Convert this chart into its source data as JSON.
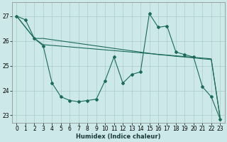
{
  "xlabel": "Humidex (Indice chaleur)",
  "bg_color": "#cce8e8",
  "grid_color": "#aacccc",
  "line_color": "#1a6b5a",
  "xlim": [
    -0.5,
    23.5
  ],
  "ylim": [
    22.7,
    27.55
  ],
  "yticks": [
    23,
    24,
    25,
    26,
    27
  ],
  "xticks": [
    0,
    1,
    2,
    3,
    4,
    5,
    6,
    7,
    8,
    9,
    10,
    11,
    12,
    13,
    14,
    15,
    16,
    17,
    18,
    19,
    20,
    21,
    22,
    23
  ],
  "line1_x": [
    0,
    1,
    2,
    3,
    4,
    5,
    6,
    7,
    8,
    9,
    10,
    11,
    12,
    13,
    14,
    15,
    16,
    17,
    18,
    19,
    20,
    21,
    22,
    23
  ],
  "line1_y": [
    27.0,
    26.85,
    26.1,
    25.8,
    24.3,
    23.75,
    23.6,
    23.55,
    23.6,
    23.65,
    24.4,
    25.35,
    24.3,
    24.65,
    24.75,
    27.1,
    26.55,
    26.6,
    25.55,
    25.45,
    25.35,
    24.15,
    23.75,
    22.85
  ],
  "line2_x": [
    0,
    2,
    3,
    4,
    5,
    6,
    7,
    8,
    9,
    10,
    11,
    12,
    13,
    14,
    15,
    16,
    17,
    18,
    19,
    20,
    21,
    22,
    23
  ],
  "line2_y": [
    27.0,
    26.1,
    26.1,
    26.05,
    26.0,
    25.95,
    25.9,
    25.85,
    25.8,
    25.75,
    25.7,
    25.65,
    25.6,
    25.55,
    25.5,
    25.45,
    25.42,
    25.38,
    25.35,
    25.32,
    25.28,
    25.25,
    22.9
  ],
  "line3_x": [
    0,
    2,
    3,
    4,
    5,
    6,
    7,
    8,
    9,
    10,
    11,
    12,
    13,
    14,
    15,
    16,
    17,
    18,
    19,
    20,
    21,
    22,
    23
  ],
  "line3_y": [
    27.0,
    26.1,
    25.85,
    25.82,
    25.79,
    25.76,
    25.73,
    25.7,
    25.67,
    25.64,
    25.61,
    25.58,
    25.55,
    25.52,
    25.49,
    25.46,
    25.43,
    25.4,
    25.37,
    25.34,
    25.31,
    25.28,
    22.9
  ]
}
